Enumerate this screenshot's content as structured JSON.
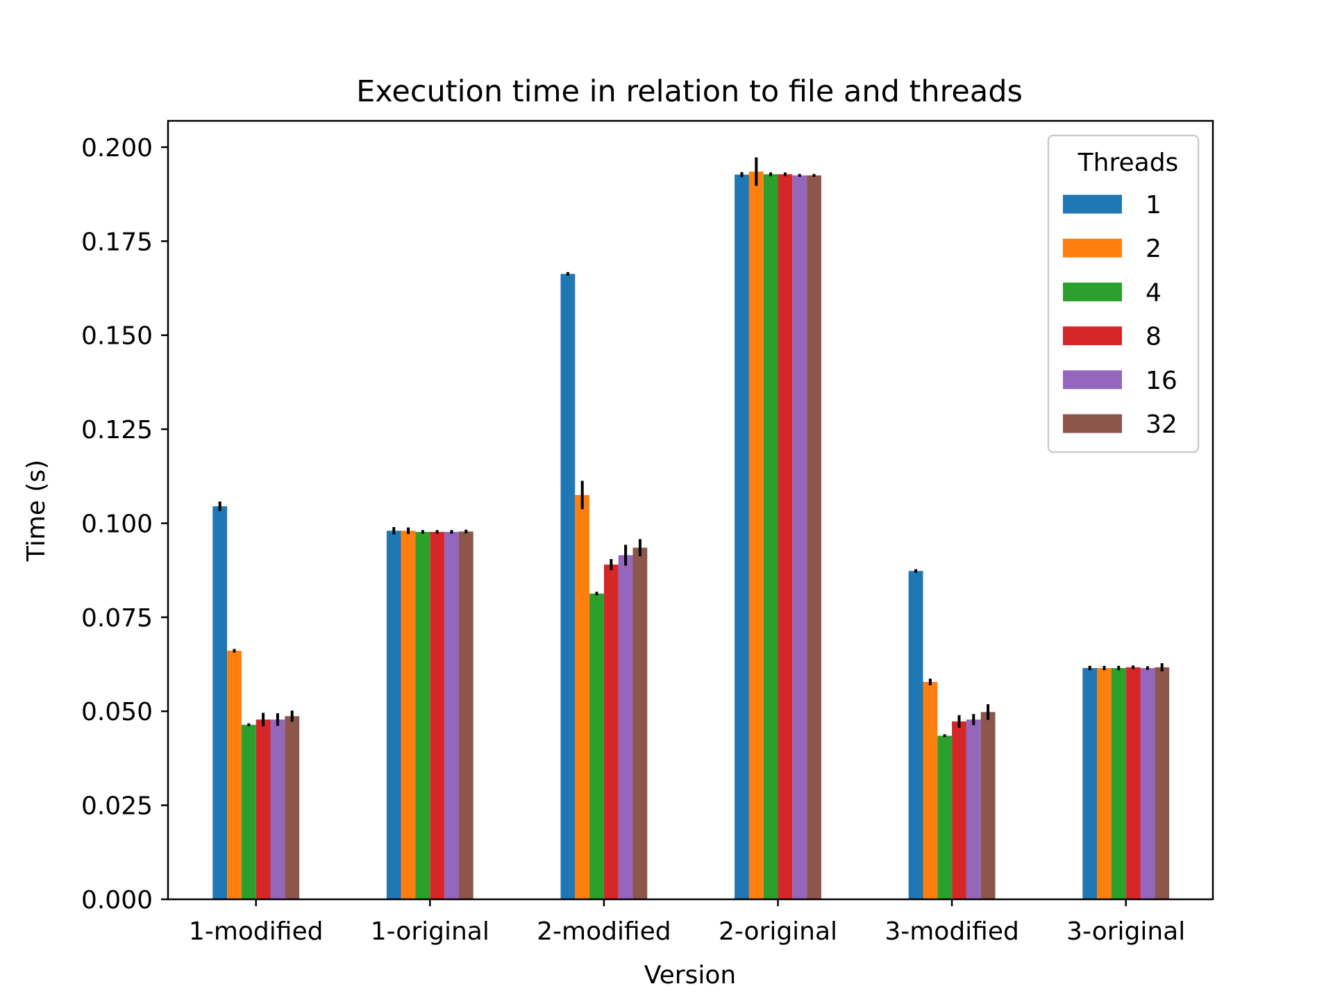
{
  "chart_data": {
    "type": "bar",
    "title": "Execution time in relation to file and threads",
    "xlabel": "Version",
    "ylabel": "Time (s)",
    "ylim": [
      0,
      0.207
    ],
    "yticks": [
      "0.000",
      "0.025",
      "0.050",
      "0.075",
      "0.100",
      "0.125",
      "0.150",
      "0.175",
      "0.200"
    ],
    "categories": [
      "1-modified",
      "1-original",
      "2-modified",
      "2-original",
      "3-modified",
      "3-original"
    ],
    "grid": false,
    "legend": {
      "title": "Threads",
      "placement": "top-right"
    },
    "series": [
      {
        "name": "1",
        "color": "#1f77b4",
        "values": [
          0.1045,
          0.098,
          0.1663,
          0.1927,
          0.0873,
          0.0615
        ],
        "errors": [
          0.001,
          0.0007,
          0.0002,
          0.0004,
          0.0002,
          0.0003
        ]
      },
      {
        "name": "2",
        "color": "#ff7f0e",
        "values": [
          0.0661,
          0.098,
          0.1075,
          0.1935,
          0.0578,
          0.0615
        ],
        "errors": [
          0.0002,
          0.0006,
          0.0035,
          0.0035,
          0.0006,
          0.0003
        ]
      },
      {
        "name": "4",
        "color": "#2ca02c",
        "values": [
          0.0464,
          0.0977,
          0.0813,
          0.1928,
          0.0435,
          0.0615
        ],
        "errors": [
          0.0001,
          0.0002,
          0.0002,
          0.0002,
          0.0001,
          0.0003
        ]
      },
      {
        "name": "8",
        "color": "#d62728",
        "values": [
          0.0478,
          0.0977,
          0.089,
          0.1928,
          0.0473,
          0.0617
        ],
        "errors": [
          0.0015,
          0.0002,
          0.0012,
          0.0002,
          0.0014,
          0.0002
        ]
      },
      {
        "name": "16",
        "color": "#9467bd",
        "values": [
          0.0478,
          0.0977,
          0.0915,
          0.1925,
          0.0478,
          0.0615
        ],
        "errors": [
          0.0014,
          0.0002,
          0.0025,
          0.0001,
          0.0012,
          0.0002
        ]
      },
      {
        "name": "32",
        "color": "#8c564b",
        "values": [
          0.0487,
          0.0978,
          0.0935,
          0.1925,
          0.0498,
          0.0617
        ],
        "errors": [
          0.0012,
          0.0002,
          0.002,
          0.0001,
          0.0018,
          0.0008
        ]
      }
    ]
  }
}
